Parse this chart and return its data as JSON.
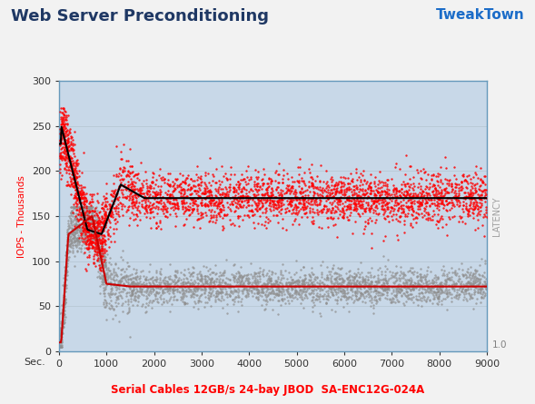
{
  "title": "Web Server Preconditioning",
  "xlabel_left": "Sec.",
  "xlabel_center": "Serial Cables 12GB/s 24-bay JBOD  SA-ENC12G-024A",
  "ylabel_left": "IOPS - Thousands",
  "ylabel_right": "LATENCY",
  "ylim": [
    0,
    300
  ],
  "xlim": [
    0,
    9000
  ],
  "yticks": [
    0,
    50,
    100,
    150,
    200,
    250,
    300
  ],
  "xticks": [
    0,
    1000,
    2000,
    3000,
    4000,
    5000,
    6000,
    7000,
    8000,
    9000
  ],
  "bg_color": "#F2F2F2",
  "plot_bg_color": "#C8D8E8",
  "grid_color": "#B0C4D8",
  "title_color": "#1F3864",
  "xlabel_color": "#FF0000",
  "ylabel_left_color": "#FF0000",
  "ylabel_right_color": "#A0A0A0",
  "scatter_red_color": "#FF0000",
  "scatter_gray_color": "#909090",
  "line_black_color": "#000000",
  "line_red_color": "#CC0000",
  "scatter_size": 3,
  "tweaktown_color": "#1B6CC8"
}
